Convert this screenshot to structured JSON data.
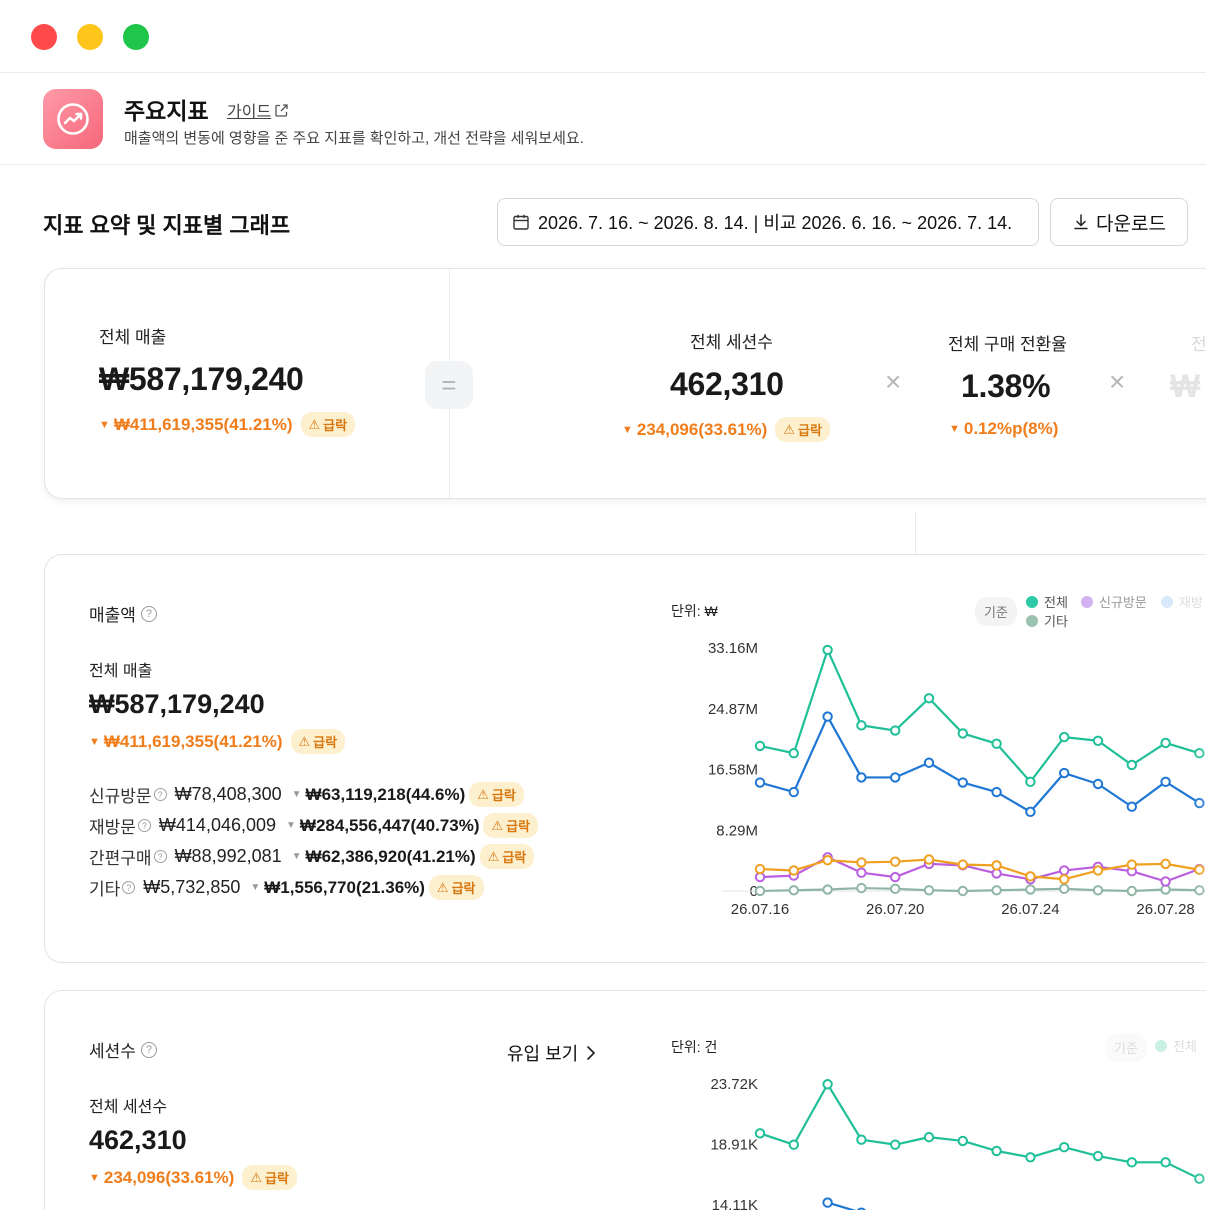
{
  "window": {
    "buttons": [
      "close",
      "minimize",
      "maximize"
    ]
  },
  "header": {
    "title": "주요지표",
    "guide_label": "가이드",
    "description": "매출액의 변동에 영향을 준 주요 지표를 확인하고, 개선 전략을 세워보세요."
  },
  "section": {
    "title": "지표 요약 및 지표별 그래프",
    "date_range": "2026. 7. 16. ~ 2026. 8. 14. | 비교 2026. 6. 16. ~ 2026. 7. 14.",
    "download_label": "다운로드"
  },
  "summary": {
    "revenue": {
      "label": "전체 매출",
      "value": "₩587,179,240",
      "delta": "₩411,619,355(41.21%)",
      "badge": "급락"
    },
    "sessions": {
      "label": "전체 세션수",
      "value": "462,310",
      "delta": "234,096(33.61%)",
      "badge": "급락"
    },
    "conversion": {
      "label": "전체 구매 전환율",
      "value": "1.38%",
      "delta": "0.12%p(8%)"
    },
    "aov": {
      "label": "전",
      "value": "₩",
      "delta": ""
    },
    "operators": {
      "equals": "=",
      "times": "×"
    }
  },
  "revenue_card": {
    "title": "매출액",
    "sub_label": "전체 매출",
    "value": "₩587,179,240",
    "delta": "₩411,619,355(41.21%)",
    "badge": "급락",
    "breakdown": [
      {
        "name": "신규방문",
        "value": "₩78,408,300",
        "delta": "₩63,119,218(44.6%)",
        "badge": "급락"
      },
      {
        "name": "재방문",
        "value": "₩414,046,009",
        "delta": "₩284,556,447(40.73%)",
        "badge": "급락"
      },
      {
        "name": "간편구매",
        "value": "₩88,992,081",
        "delta": "₩62,386,920(41.21%)",
        "badge": "급락"
      },
      {
        "name": "기타",
        "value": "₩5,732,850",
        "delta": "₩1,556,770(21.36%)",
        "badge": "급락"
      }
    ],
    "unit": "단위: ₩",
    "legend_base": "기준",
    "legend": [
      {
        "name": "전체",
        "color": "#2ec9a5"
      },
      {
        "name": "신규방문",
        "color": "#c79ae9"
      },
      {
        "name": "재방",
        "color": "#bcd9f7"
      },
      {
        "name": "기타",
        "color": "#9cc3b1"
      }
    ]
  },
  "sessions_card": {
    "title": "세션수",
    "link_label": "유입 보기",
    "sub_label": "전체 세션수",
    "value": "462,310",
    "delta": "234,096(33.61%)",
    "badge": "급락",
    "unit": "단위: 건",
    "legend_base": "기준",
    "legend": [
      {
        "name": "전체",
        "color": "#2ec9a5"
      }
    ]
  },
  "chart_data": [
    {
      "type": "line",
      "y_tick_labels": [
        "33.16M",
        "24.87M",
        "16.58M",
        "8.29M",
        "0"
      ],
      "x_tick_labels": [
        "26.07.16",
        "26.07.20",
        "26.07.24",
        "26.07.28"
      ],
      "ylim": [
        0,
        33.16
      ],
      "series": [
        {
          "name": "전체",
          "color": "#1fbf98",
          "values": [
            19.8,
            18.8,
            32.9,
            22.6,
            21.9,
            26.3,
            21.5,
            20.1,
            14.9,
            21.0,
            20.5,
            17.2,
            20.2,
            18.8
          ]
        },
        {
          "name": "재방문",
          "color": "#1e77d4",
          "values": [
            14.8,
            13.5,
            23.8,
            15.5,
            15.5,
            17.5,
            14.8,
            13.5,
            10.8,
            16.1,
            14.6,
            11.5,
            14.9,
            12.0
          ]
        },
        {
          "name": "간편구매",
          "color": "#f0a020",
          "values": [
            3.0,
            2.8,
            4.2,
            3.9,
            4.0,
            4.3,
            3.6,
            3.5,
            2.0,
            1.6,
            2.8,
            3.6,
            3.7,
            2.9
          ]
        },
        {
          "name": "신규방문",
          "color": "#b95fe0",
          "values": [
            1.9,
            2.1,
            4.6,
            2.5,
            1.9,
            3.7,
            3.5,
            2.4,
            1.6,
            2.8,
            3.3,
            2.7,
            1.3,
            3.0
          ]
        },
        {
          "name": "기타",
          "color": "#8fb5a4",
          "values": [
            0.0,
            0.1,
            0.2,
            0.4,
            0.3,
            0.1,
            0.0,
            0.1,
            0.2,
            0.3,
            0.1,
            0.0,
            0.2,
            0.1
          ]
        }
      ]
    },
    {
      "type": "line",
      "y_tick_labels": [
        "23.72K",
        "18.91K",
        "14.11K"
      ],
      "ylim": [
        14.11,
        23.72
      ],
      "series": [
        {
          "name": "전체",
          "color": "#1fbf98",
          "values": [
            19.8,
            18.9,
            23.7,
            19.3,
            18.9,
            19.5,
            19.2,
            18.4,
            17.9,
            18.7,
            18.0,
            17.5,
            17.5,
            16.2
          ]
        },
        {
          "name": "재방문",
          "color": "#1e77d4",
          "values": [
            null,
            null,
            14.3,
            13.5
          ]
        }
      ]
    }
  ]
}
